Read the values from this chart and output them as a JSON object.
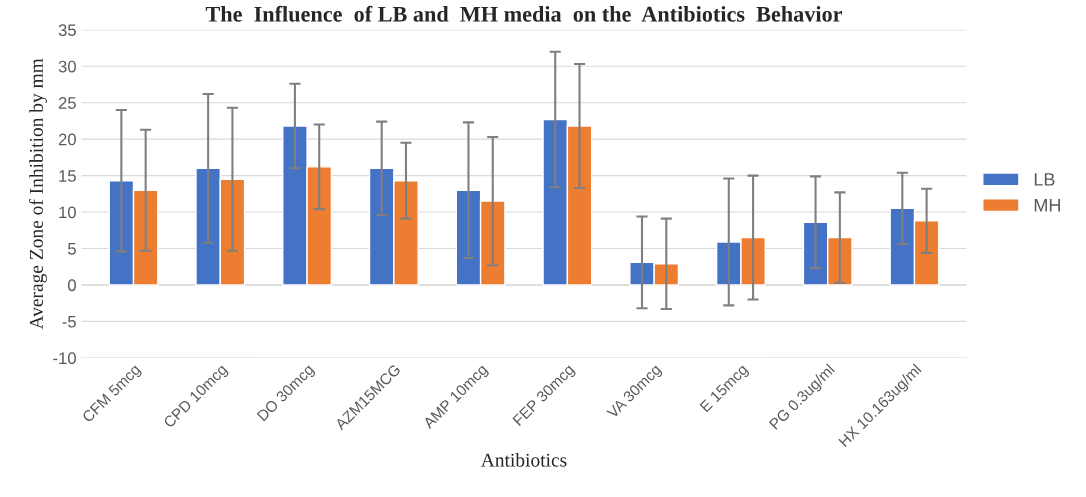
{
  "chart_data": {
    "type": "bar",
    "title": "The  Influence  of LB and  MH media  on the  Antibiotics  Behavior",
    "xlabel": "Antibiotics",
    "ylabel": "Average Zone of Inhibition by mm",
    "categories": [
      "CFM 5mcg",
      "CPD 10mcg",
      "DO 30mcg",
      "AZM15MCG",
      "AMP 10mcg",
      "FEP 30mcg",
      "VA 30mcg",
      "E 15mcg",
      "PG 0.3ug/ml",
      "HX 10.163ug/ml"
    ],
    "series": [
      {
        "name": "LB",
        "color": "#4472c4",
        "values": [
          14.3,
          16,
          21.8,
          16,
          13,
          22.7,
          3.1,
          5.9,
          8.6,
          10.5
        ],
        "errors": [
          9.7,
          10.2,
          5.8,
          6.4,
          9.3,
          9.3,
          6.3,
          8.7,
          6.3,
          4.9
        ]
      },
      {
        "name": "MH",
        "color": "#ed7d31",
        "values": [
          13,
          14.5,
          16.2,
          14.3,
          11.5,
          21.8,
          2.9,
          6.5,
          6.5,
          8.8
        ],
        "errors": [
          8.3,
          9.8,
          5.8,
          5.2,
          8.8,
          8.5,
          6.2,
          8.5,
          6.2,
          4.4
        ]
      }
    ],
    "ylim": [
      -10,
      35
    ],
    "yticks": [
      -10,
      -5,
      0,
      5,
      10,
      15,
      20,
      25,
      30,
      35
    ],
    "grid": "y",
    "legend": "right"
  }
}
